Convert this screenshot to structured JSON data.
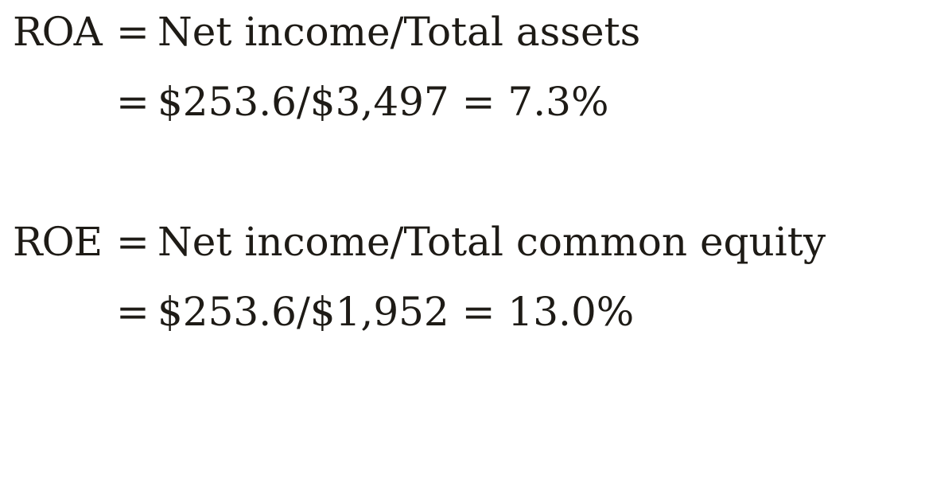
{
  "roa": {
    "term": "ROA",
    "equals": "=",
    "definition": "Net income/Total assets",
    "calc_equals": "=",
    "calculation": "$253.6/$3,497 = 7.3%"
  },
  "roe": {
    "term": "ROE",
    "equals": "=",
    "definition": "Net income/Total common equity",
    "calc_equals": "=",
    "calculation": "$253.6/$1,952 = 13.0%"
  }
}
